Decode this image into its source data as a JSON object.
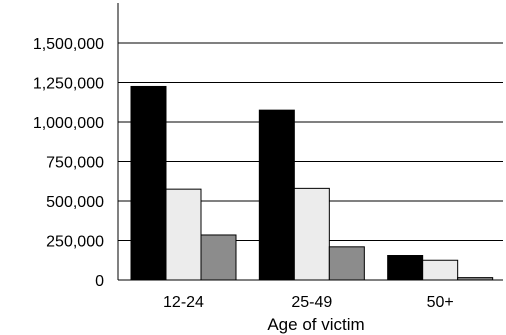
{
  "chart_data": {
    "type": "bar",
    "title": "",
    "xlabel": "Age of victim",
    "ylabel": "",
    "categories": [
      "12-24",
      "25-49",
      "50+"
    ],
    "series": [
      {
        "values": [
          1225000,
          1075000,
          155000
        ],
        "color": "#000000"
      },
      {
        "values": [
          575000,
          580000,
          125000
        ],
        "color": "#ececec"
      },
      {
        "values": [
          285000,
          210000,
          15000
        ],
        "color": "#8c8c8c"
      }
    ],
    "yticks": [
      "0",
      "250,000",
      "500,000",
      "750,000",
      "1,000,000",
      "1,250,000",
      "1,500,000"
    ],
    "ylim": [
      0,
      1500000
    ],
    "grid": true,
    "legend": "none"
  }
}
